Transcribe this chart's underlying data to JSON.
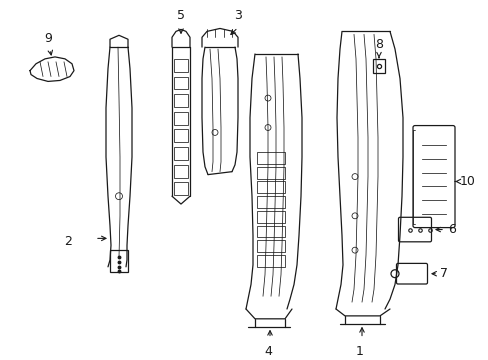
{
  "bg_color": "#ffffff",
  "line_color": "#1a1a1a",
  "lw": 0.9,
  "tlw": 0.55,
  "fig_width": 4.89,
  "fig_height": 3.6,
  "dpi": 100
}
